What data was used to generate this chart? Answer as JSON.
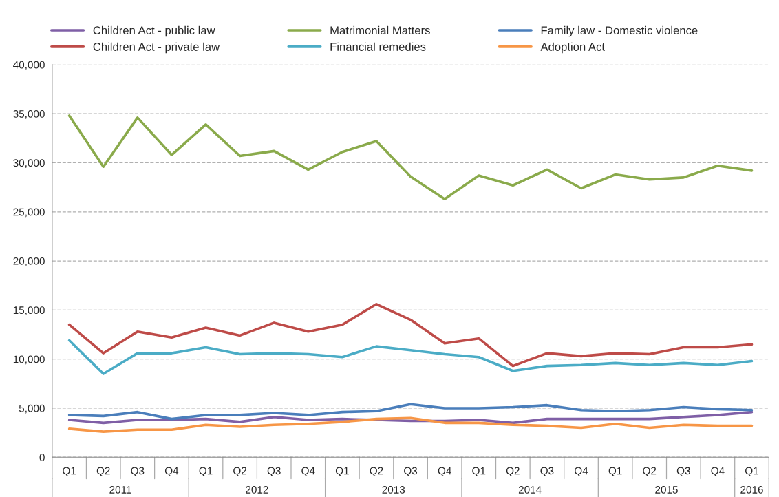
{
  "chart_data": {
    "type": "line",
    "categories": [
      "Q1",
      "Q2",
      "Q3",
      "Q4",
      "Q1",
      "Q2",
      "Q3",
      "Q4",
      "Q1",
      "Q2",
      "Q3",
      "Q4",
      "Q1",
      "Q2",
      "Q3",
      "Q4",
      "Q1",
      "Q2",
      "Q3",
      "Q4",
      "Q1"
    ],
    "annotations": [
      "2011",
      "2012",
      "2013",
      "2014",
      "2015",
      "2016"
    ],
    "series": [
      {
        "name": "Children Act - public law",
        "color": "#7f5fa6",
        "values": [
          3800,
          3500,
          3800,
          3800,
          3900,
          3600,
          4100,
          3800,
          3900,
          3800,
          3700,
          3700,
          3800,
          3500,
          3900,
          3900,
          3900,
          3900,
          4100,
          4300,
          4600
        ]
      },
      {
        "name": "Children Act - private law",
        "color": "#be4b48",
        "values": [
          13500,
          10600,
          12800,
          12200,
          13200,
          12400,
          13700,
          12800,
          13500,
          15600,
          14000,
          11600,
          12100,
          9300,
          10600,
          10300,
          10600,
          10500,
          11200,
          11200,
          11500
        ]
      },
      {
        "name": "Matrimonial Matters",
        "color": "#8aaa4b",
        "values": [
          34800,
          29600,
          34600,
          30800,
          33900,
          30700,
          31200,
          29300,
          31100,
          32200,
          28600,
          26300,
          28700,
          27700,
          29300,
          27400,
          28800,
          28300,
          28500,
          29700,
          29200
        ]
      },
      {
        "name": "Financial remedies",
        "color": "#4bacc6",
        "values": [
          11900,
          8500,
          10600,
          10600,
          11200,
          10500,
          10600,
          10500,
          10200,
          11300,
          10900,
          10500,
          10200,
          8800,
          9300,
          9400,
          9600,
          9400,
          9600,
          9400,
          9800
        ]
      },
      {
        "name": "Family law - Domestic violence",
        "color": "#4a7ebb",
        "values": [
          4300,
          4200,
          4600,
          3900,
          4300,
          4300,
          4500,
          4300,
          4600,
          4700,
          5400,
          5000,
          5000,
          5100,
          5300,
          4800,
          4700,
          4800,
          5100,
          4900,
          4800
        ]
      },
      {
        "name": "Adoption Act",
        "color": "#f79646",
        "values": [
          2900,
          2600,
          2800,
          2800,
          3300,
          3100,
          3300,
          3400,
          3600,
          3900,
          4000,
          3500,
          3500,
          3300,
          3200,
          3000,
          3400,
          3000,
          3300,
          3200,
          3200
        ]
      }
    ],
    "ylim": [
      0,
      40000
    ],
    "yticks": [
      {
        "value": 0,
        "label": "0"
      },
      {
        "value": 5000,
        "label": "5,000"
      },
      {
        "value": 10000,
        "label": "10,000"
      },
      {
        "value": 15000,
        "label": "15,000"
      },
      {
        "value": 20000,
        "label": "20,000"
      },
      {
        "value": 25000,
        "label": "25,000"
      },
      {
        "value": 30000,
        "label": "30,000"
      },
      {
        "value": 35000,
        "label": "35,000"
      },
      {
        "value": 40000,
        "label": "40,000"
      }
    ],
    "grid": "y",
    "legend": "top",
    "marker": "none",
    "line_style": "solid"
  }
}
